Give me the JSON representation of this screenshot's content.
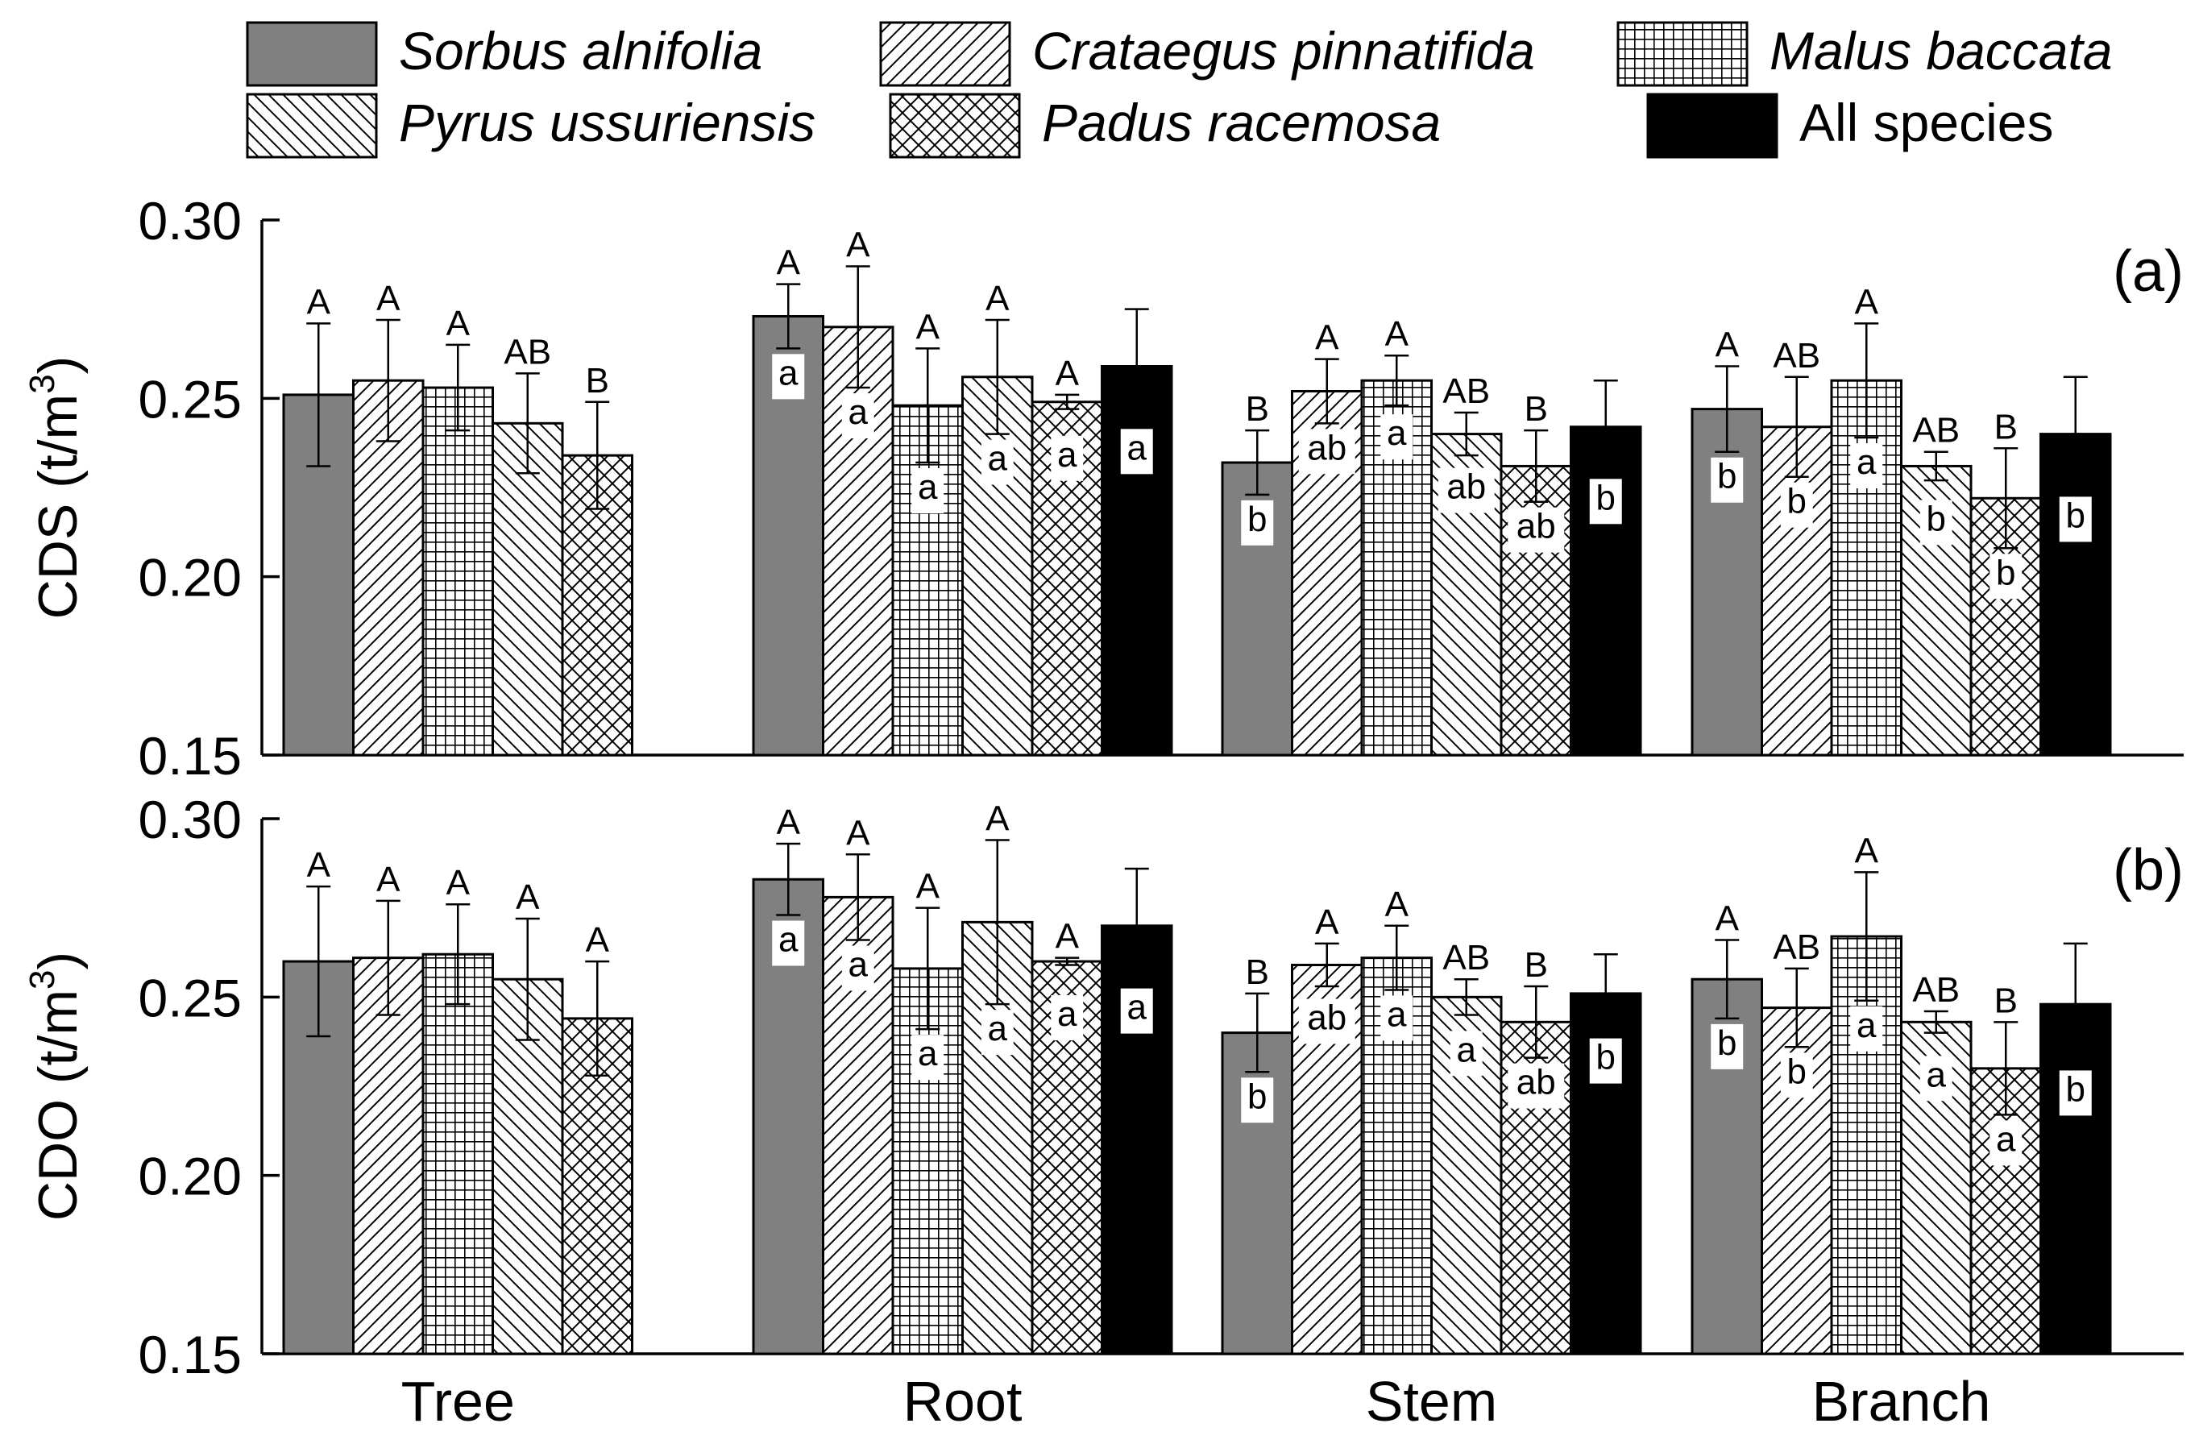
{
  "legend": {
    "items": [
      {
        "name": "Sorbus alnifolia",
        "italic": true,
        "pattern": "solid-gray"
      },
      {
        "name": "Crataegus pinnatifida",
        "italic": true,
        "pattern": "diag-fwd"
      },
      {
        "name": "Malus baccata",
        "italic": true,
        "pattern": "grid"
      },
      {
        "name": "Pyrus ussuriensis",
        "italic": true,
        "pattern": "diag-back"
      },
      {
        "name": "Padus racemosa",
        "italic": true,
        "pattern": "cross"
      },
      {
        "name": "All species",
        "italic": false,
        "pattern": "solid-black"
      }
    ]
  },
  "colors": {
    "gray": "#808080",
    "black": "#000000",
    "background": "#ffffff"
  },
  "chart_data": [
    {
      "type": "bar",
      "panel": "(a)",
      "ylabel_main": "CDS (t/m",
      "ylabel_sup": "3",
      "ylabel_end": ")",
      "ylim": [
        0.15,
        0.3
      ],
      "yticks": [
        "0.30",
        "0.25",
        "0.20",
        "0.15"
      ],
      "ytick_values": [
        0.3,
        0.25,
        0.2,
        0.15
      ],
      "categories": [
        "Tree",
        "Root",
        "Stem",
        "Branch"
      ],
      "series": [
        {
          "name": "Sorbus alnifolia",
          "values": [
            0.251,
            0.273,
            0.232,
            0.247
          ],
          "errors": [
            0.02,
            0.009,
            0.009,
            0.012
          ],
          "upper_letters": [
            "A",
            "A",
            "B",
            "A"
          ],
          "lower_letters": [
            null,
            "a",
            "b",
            "b"
          ]
        },
        {
          "name": "Crataegus pinnatifida",
          "values": [
            0.255,
            0.27,
            0.252,
            0.242
          ],
          "errors": [
            0.017,
            0.017,
            0.009,
            0.014
          ],
          "upper_letters": [
            "A",
            "A",
            "A",
            "AB"
          ],
          "lower_letters": [
            null,
            "a",
            "ab",
            "b"
          ]
        },
        {
          "name": "Malus baccata",
          "values": [
            0.253,
            0.248,
            0.255,
            0.255
          ],
          "errors": [
            0.012,
            0.016,
            0.007,
            0.016
          ],
          "upper_letters": [
            "A",
            "A",
            "A",
            "A"
          ],
          "lower_letters": [
            null,
            "a",
            "a",
            "a"
          ]
        },
        {
          "name": "Pyrus ussuriensis",
          "values": [
            0.243,
            0.256,
            0.24,
            0.231
          ],
          "errors": [
            0.014,
            0.016,
            0.006,
            0.004
          ],
          "upper_letters": [
            "AB",
            "A",
            "AB",
            "AB"
          ],
          "lower_letters": [
            null,
            "a",
            "ab",
            "b"
          ]
        },
        {
          "name": "Padus racemosa",
          "values": [
            0.234,
            0.249,
            0.231,
            0.222
          ],
          "errors": [
            0.015,
            0.002,
            0.01,
            0.014
          ],
          "upper_letters": [
            "B",
            "A",
            "B",
            "B"
          ],
          "lower_letters": [
            null,
            "a",
            "ab",
            "b"
          ]
        },
        {
          "name": "All species",
          "values": [
            null,
            0.259,
            0.242,
            0.24
          ],
          "errors": [
            null,
            0.016,
            0.013,
            0.016
          ],
          "upper_letters": [
            null,
            null,
            null,
            null
          ],
          "lower_letters": [
            null,
            "a",
            "b",
            "b"
          ]
        }
      ]
    },
    {
      "type": "bar",
      "panel": "(b)",
      "ylabel_main": "CDO (t/m",
      "ylabel_sup": "3",
      "ylabel_end": ")",
      "ylim": [
        0.15,
        0.3
      ],
      "yticks": [
        "0.30",
        "0.25",
        "0.20",
        "0.15"
      ],
      "ytick_values": [
        0.3,
        0.25,
        0.2,
        0.15
      ],
      "categories": [
        "Tree",
        "Root",
        "Stem",
        "Branch"
      ],
      "series": [
        {
          "name": "Sorbus alnifolia",
          "values": [
            0.26,
            0.283,
            0.24,
            0.255
          ],
          "errors": [
            0.021,
            0.01,
            0.011,
            0.011
          ],
          "upper_letters": [
            "A",
            "A",
            "B",
            "A"
          ],
          "lower_letters": [
            null,
            "a",
            "b",
            "b"
          ]
        },
        {
          "name": "Crataegus pinnatifida",
          "values": [
            0.261,
            0.278,
            0.259,
            0.247
          ],
          "errors": [
            0.016,
            0.012,
            0.006,
            0.011
          ],
          "upper_letters": [
            "A",
            "A",
            "A",
            "AB"
          ],
          "lower_letters": [
            null,
            "a",
            "ab",
            "b"
          ]
        },
        {
          "name": "Malus baccata",
          "values": [
            0.262,
            0.258,
            0.261,
            0.267
          ],
          "errors": [
            0.014,
            0.017,
            0.009,
            0.018
          ],
          "upper_letters": [
            "A",
            "A",
            "A",
            "A"
          ],
          "lower_letters": [
            null,
            "a",
            "a",
            "a"
          ]
        },
        {
          "name": "Pyrus ussuriensis",
          "values": [
            0.255,
            0.271,
            0.25,
            0.243
          ],
          "errors": [
            0.017,
            0.023,
            0.005,
            0.003
          ],
          "upper_letters": [
            "A",
            "A",
            "AB",
            "AB"
          ],
          "lower_letters": [
            null,
            "a",
            "a",
            "a"
          ]
        },
        {
          "name": "Padus racemosa",
          "values": [
            0.244,
            0.26,
            0.243,
            0.23
          ],
          "errors": [
            0.016,
            0.001,
            0.01,
            0.013
          ],
          "upper_letters": [
            "A",
            "A",
            "B",
            "B"
          ],
          "lower_letters": [
            null,
            "a",
            "ab",
            "a"
          ]
        },
        {
          "name": "All species",
          "values": [
            null,
            0.27,
            0.251,
            0.248
          ],
          "errors": [
            null,
            0.016,
            0.011,
            0.017
          ],
          "upper_letters": [
            null,
            null,
            null,
            null
          ],
          "lower_letters": [
            null,
            "a",
            "b",
            "b"
          ]
        }
      ]
    }
  ]
}
